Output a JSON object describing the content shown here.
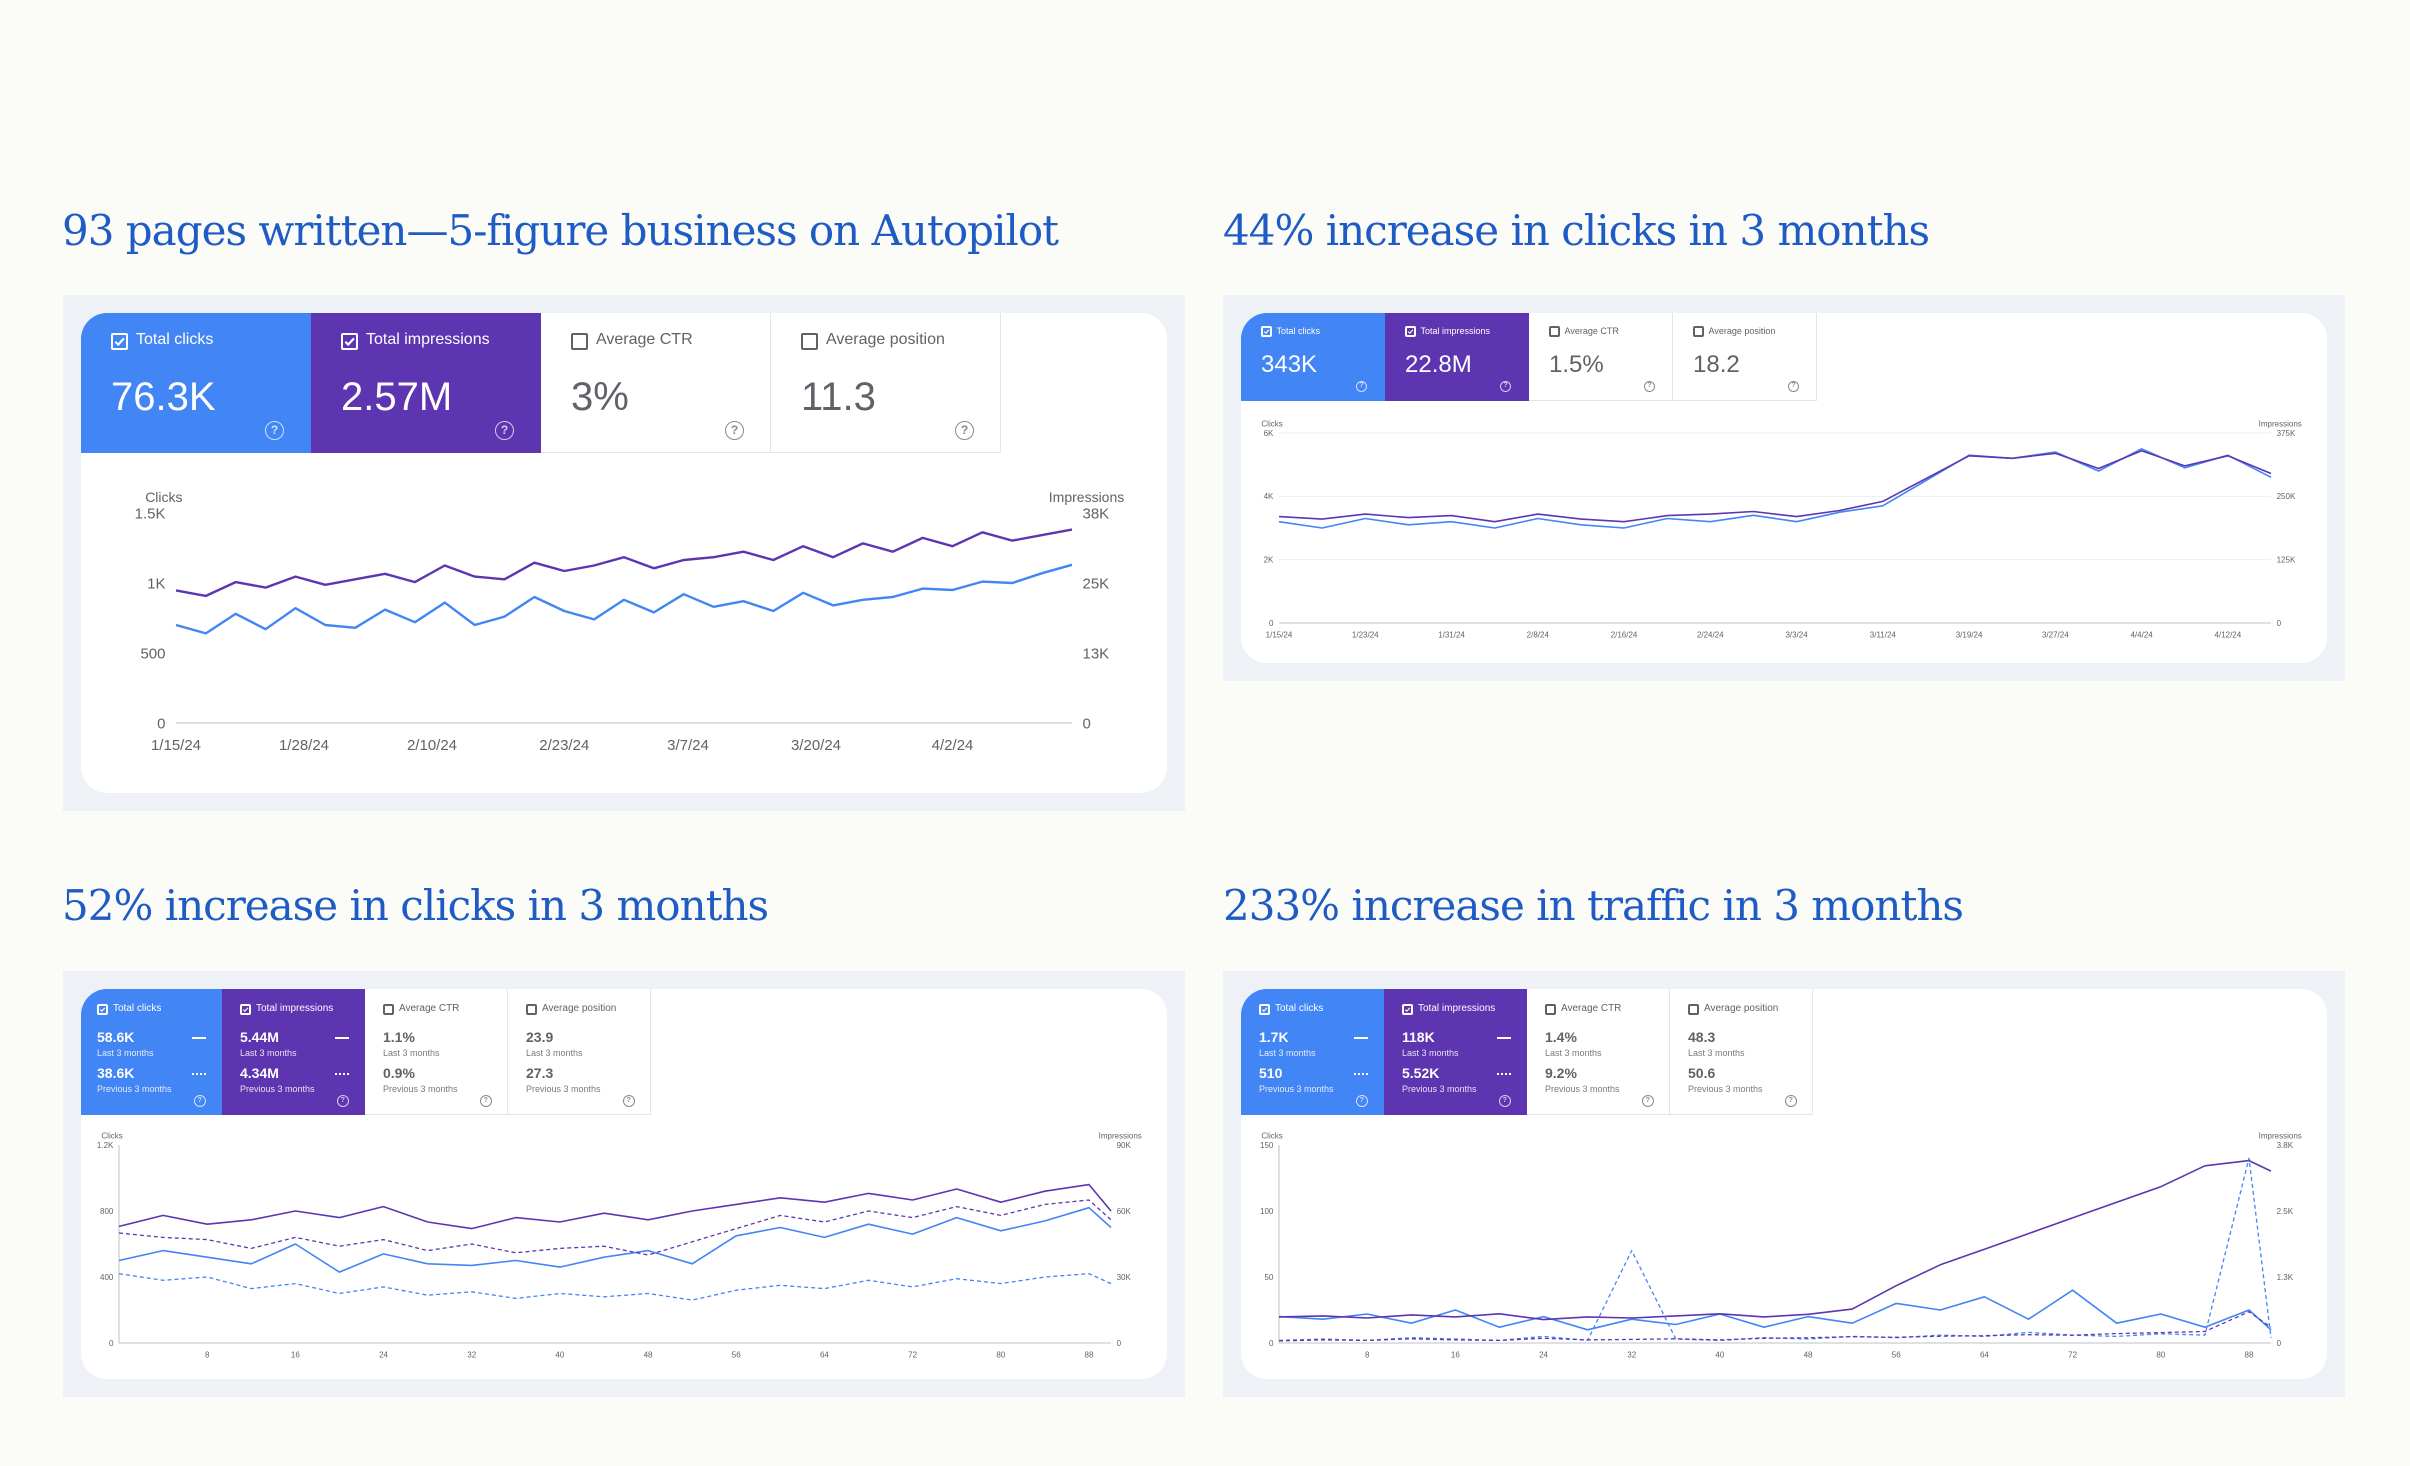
{
  "headings": {
    "h1": "93 pages written—5-figure business on Autopilot",
    "h2": "44% increase in clicks in 3 months",
    "h3": "52% increase in clicks in 3 months",
    "h4": "233% increase in traffic in 3 months"
  },
  "colors": {
    "clicks": "#4285f4",
    "impressions": "#5e35b1",
    "heading": "#1f5bc4",
    "prev_clicks": "#9fc0f7",
    "prev_impressions": "#a393cf"
  },
  "icons": {
    "checkbox": "checkbox-icon",
    "help": "help-circle-icon"
  },
  "panels": [
    {
      "cards": [
        {
          "label": "Total clicks",
          "value": "76.3K",
          "checked": true,
          "color": "blue"
        },
        {
          "label": "Total impressions",
          "value": "2.57M",
          "checked": true,
          "color": "purple"
        },
        {
          "label": "Average CTR",
          "value": "3%",
          "checked": false,
          "color": "white"
        },
        {
          "label": "Average position",
          "value": "11.3",
          "checked": false,
          "color": "white"
        }
      ],
      "left_axis_label": "Clicks",
      "right_axis_label": "Impressions"
    },
    {
      "cards": [
        {
          "label": "Total clicks",
          "value": "343K",
          "checked": true,
          "color": "blue"
        },
        {
          "label": "Total impressions",
          "value": "22.8M",
          "checked": true,
          "color": "purple"
        },
        {
          "label": "Average CTR",
          "value": "1.5%",
          "checked": false,
          "color": "white"
        },
        {
          "label": "Average position",
          "value": "18.2",
          "checked": false,
          "color": "white"
        }
      ],
      "left_axis_label": "Clicks",
      "right_axis_label": "Impressions"
    },
    {
      "cards": [
        {
          "label": "Total clicks",
          "value": "58.6K",
          "sub": "Last 3 months",
          "prev": "38.6K",
          "prev_sub": "Previous 3 months",
          "checked": true,
          "color": "blue"
        },
        {
          "label": "Total impressions",
          "value": "5.44M",
          "sub": "Last 3 months",
          "prev": "4.34M",
          "prev_sub": "Previous 3 months",
          "checked": true,
          "color": "purple"
        },
        {
          "label": "Average CTR",
          "value": "1.1%",
          "sub": "Last 3 months",
          "prev": "0.9%",
          "prev_sub": "Previous 3 months",
          "checked": false,
          "color": "white"
        },
        {
          "label": "Average position",
          "value": "23.9",
          "sub": "Last 3 months",
          "prev": "27.3",
          "prev_sub": "Previous 3 months",
          "checked": false,
          "color": "white"
        }
      ],
      "left_axis_label": "Clicks",
      "right_axis_label": "Impressions"
    },
    {
      "cards": [
        {
          "label": "Total clicks",
          "value": "1.7K",
          "sub": "Last 3 months",
          "prev": "510",
          "prev_sub": "Previous 3 months",
          "checked": true,
          "color": "blue"
        },
        {
          "label": "Total impressions",
          "value": "118K",
          "sub": "Last 3 months",
          "prev": "5.52K",
          "prev_sub": "Previous 3 months",
          "checked": true,
          "color": "purple"
        },
        {
          "label": "Average CTR",
          "value": "1.4%",
          "sub": "Last 3 months",
          "prev": "9.2%",
          "prev_sub": "Previous 3 months",
          "checked": false,
          "color": "white"
        },
        {
          "label": "Average position",
          "value": "48.3",
          "sub": "Last 3 months",
          "prev": "50.6",
          "prev_sub": "Previous 3 months",
          "checked": false,
          "color": "white"
        }
      ],
      "left_axis_label": "Clicks",
      "right_axis_label": "Impressions"
    }
  ],
  "chart_data": [
    {
      "type": "line",
      "x": [
        "1/15/24",
        "1/18/24",
        "1/21/24",
        "1/24/24",
        "1/27/24",
        "1/30/24",
        "2/2/24",
        "2/5/24",
        "2/8/24",
        "2/11/24",
        "2/14/24",
        "2/17/24",
        "2/20/24",
        "2/23/24",
        "2/26/24",
        "2/29/24",
        "3/3/24",
        "3/6/24",
        "3/9/24",
        "3/12/24",
        "3/15/24",
        "3/18/24",
        "3/21/24",
        "3/24/24",
        "3/27/24",
        "3/30/24",
        "4/2/24",
        "4/5/24",
        "4/8/24",
        "4/11/24",
        "4/14/24"
      ],
      "x_tick_labels": [
        "1/15/24",
        "1/28/24",
        "2/10/24",
        "2/23/24",
        "3/7/24",
        "3/20/24",
        "4/2/24"
      ],
      "left_axis": {
        "label": "Clicks",
        "ticks": [
          "0",
          "500",
          "1K",
          "1.5K"
        ],
        "range": [
          0,
          1500
        ]
      },
      "right_axis": {
        "label": "Impressions",
        "ticks": [
          "0",
          "13K",
          "25K",
          "38K"
        ],
        "range": [
          0,
          38000
        ]
      },
      "series": [
        {
          "name": "Clicks",
          "axis": "left",
          "values": [
            700,
            640,
            780,
            670,
            820,
            700,
            680,
            810,
            720,
            860,
            700,
            760,
            900,
            800,
            740,
            880,
            790,
            920,
            830,
            870,
            800,
            930,
            840,
            880,
            900,
            960,
            950,
            1010,
            1000,
            1070,
            1130
          ]
        },
        {
          "name": "Impressions",
          "axis": "right",
          "values": [
            24000,
            23000,
            25500,
            24500,
            26500,
            25000,
            26000,
            27000,
            25500,
            28500,
            26500,
            26000,
            29000,
            27500,
            28500,
            30000,
            28000,
            29500,
            30000,
            31000,
            29500,
            32000,
            30000,
            32500,
            31000,
            33500,
            32000,
            34500,
            33000,
            34000,
            35000
          ]
        }
      ]
    },
    {
      "type": "line",
      "x": [
        "1/15/24",
        "1/19/24",
        "1/23/24",
        "1/27/24",
        "1/31/24",
        "2/4/24",
        "2/8/24",
        "2/12/24",
        "2/16/24",
        "2/20/24",
        "2/24/24",
        "2/28/24",
        "3/3/24",
        "3/7/24",
        "3/11/24",
        "3/15/24",
        "3/19/24",
        "3/23/24",
        "3/27/24",
        "3/31/24",
        "4/4/24",
        "4/8/24",
        "4/12/24",
        "4/16/24"
      ],
      "x_tick_labels": [
        "1/15/24",
        "1/23/24",
        "1/31/24",
        "2/8/24",
        "2/16/24",
        "2/24/24",
        "3/3/24",
        "3/11/24",
        "3/19/24",
        "3/27/24",
        "4/4/24",
        "4/12/24"
      ],
      "left_axis": {
        "label": "Clicks",
        "ticks": [
          "0",
          "2K",
          "4K",
          "6K"
        ],
        "range": [
          0,
          6000
        ]
      },
      "right_axis": {
        "label": "Impressions",
        "ticks": [
          "0",
          "125K",
          "250K",
          "375K"
        ],
        "range": [
          0,
          375000
        ]
      },
      "series": [
        {
          "name": "Clicks",
          "axis": "left",
          "values": [
            3200,
            3000,
            3300,
            3100,
            3200,
            3000,
            3300,
            3100,
            3000,
            3300,
            3200,
            3400,
            3200,
            3500,
            3700,
            4500,
            5300,
            5200,
            5400,
            4800,
            5500,
            4900,
            5300,
            4600
          ]
        },
        {
          "name": "Impressions",
          "axis": "right",
          "values": [
            210000,
            205000,
            215000,
            208000,
            212000,
            200000,
            215000,
            205000,
            200000,
            212000,
            215000,
            220000,
            210000,
            222000,
            240000,
            285000,
            330000,
            325000,
            335000,
            305000,
            340000,
            310000,
            330000,
            295000
          ]
        }
      ]
    },
    {
      "type": "line",
      "x": [
        0,
        4,
        8,
        12,
        16,
        20,
        24,
        28,
        32,
        36,
        40,
        44,
        48,
        52,
        56,
        60,
        64,
        68,
        72,
        76,
        80,
        84,
        88,
        90
      ],
      "x_tick_labels": [
        "8",
        "16",
        "24",
        "32",
        "40",
        "48",
        "56",
        "64",
        "72",
        "80",
        "88"
      ],
      "left_axis": {
        "label": "Clicks",
        "ticks": [
          "0",
          "400",
          "800",
          "1.2K"
        ],
        "range": [
          0,
          1200
        ]
      },
      "right_axis": {
        "label": "Impressions",
        "ticks": [
          "0",
          "30K",
          "60K",
          "90K"
        ],
        "range": [
          0,
          90000
        ]
      },
      "series": [
        {
          "name": "Clicks",
          "axis": "left",
          "values": [
            500,
            560,
            520,
            480,
            600,
            430,
            540,
            480,
            470,
            500,
            460,
            520,
            560,
            480,
            650,
            700,
            640,
            720,
            660,
            760,
            680,
            740,
            820,
            700
          ]
        },
        {
          "name": "Impressions",
          "axis": "right",
          "values": [
            53000,
            58000,
            54000,
            56000,
            60000,
            57000,
            62000,
            55000,
            52000,
            57000,
            55000,
            59000,
            56000,
            60000,
            63000,
            66000,
            64000,
            68000,
            65000,
            70000,
            64000,
            69000,
            72000,
            60000
          ]
        },
        {
          "name": "Clicks (previous 3 months)",
          "axis": "left",
          "values": [
            420,
            380,
            400,
            330,
            360,
            300,
            340,
            290,
            310,
            270,
            300,
            280,
            300,
            260,
            320,
            350,
            330,
            380,
            340,
            390,
            360,
            400,
            420,
            360
          ],
          "style": "dashed"
        },
        {
          "name": "Impressions (previous 3 months)",
          "axis": "right",
          "values": [
            50000,
            48000,
            47000,
            43000,
            48000,
            44000,
            47000,
            42000,
            45000,
            41000,
            43000,
            44000,
            40000,
            46000,
            52000,
            58000,
            55000,
            60000,
            57000,
            62000,
            58000,
            63000,
            65000,
            56000
          ],
          "style": "dashed"
        }
      ]
    },
    {
      "type": "line",
      "x": [
        0,
        4,
        8,
        12,
        16,
        20,
        24,
        28,
        32,
        36,
        40,
        44,
        48,
        52,
        56,
        60,
        64,
        68,
        72,
        76,
        80,
        84,
        88,
        90
      ],
      "x_tick_labels": [
        "8",
        "16",
        "24",
        "32",
        "40",
        "48",
        "56",
        "64",
        "72",
        "80",
        "88"
      ],
      "left_axis": {
        "label": "Clicks",
        "ticks": [
          "0",
          "50",
          "100",
          "150"
        ],
        "range": [
          0,
          150
        ]
      },
      "right_axis": {
        "label": "Impressions",
        "ticks": [
          "0",
          "1.3K",
          "2.5K",
          "3.8K"
        ],
        "range": [
          0,
          3800
        ]
      },
      "series": [
        {
          "name": "Clicks",
          "axis": "left",
          "values": [
            20,
            18,
            22,
            15,
            25,
            12,
            20,
            10,
            18,
            14,
            22,
            12,
            20,
            15,
            30,
            25,
            35,
            18,
            40,
            15,
            22,
            12,
            25,
            10
          ]
        },
        {
          "name": "Impressions",
          "axis": "right",
          "values": [
            500,
            520,
            480,
            540,
            500,
            560,
            450,
            500,
            480,
            520,
            560,
            500,
            550,
            650,
            1100,
            1500,
            1800,
            2100,
            2400,
            2700,
            3000,
            3400,
            3500,
            3300
          ]
        },
        {
          "name": "Clicks (previous 3 months)",
          "axis": "left",
          "values": [
            2,
            3,
            2,
            4,
            3,
            2,
            5,
            2,
            70,
            3,
            2,
            4,
            3,
            5,
            4,
            6,
            5,
            8,
            6,
            5,
            7,
            6,
            140,
            4
          ],
          "style": "dashed"
        },
        {
          "name": "Impressions (previous 3 months)",
          "axis": "right",
          "values": [
            40,
            60,
            50,
            80,
            60,
            50,
            90,
            60,
            70,
            80,
            60,
            90,
            100,
            120,
            110,
            130,
            140,
            160,
            150,
            180,
            200,
            220,
            600,
            300
          ],
          "style": "dashed"
        }
      ]
    }
  ]
}
